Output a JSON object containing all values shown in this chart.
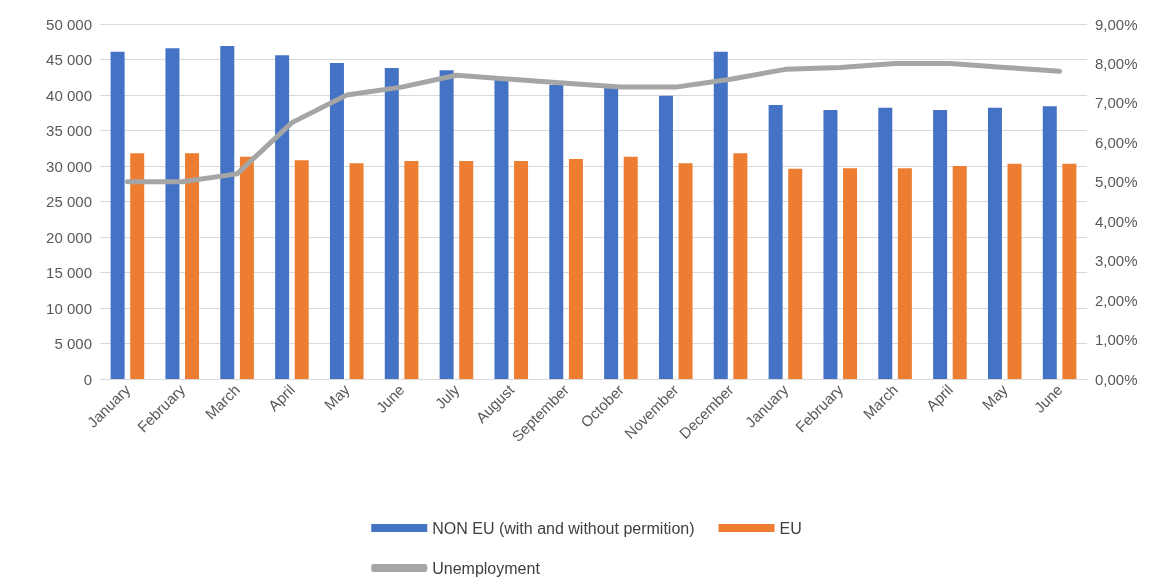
{
  "chart_data": {
    "type": "bar",
    "categories": [
      "January",
      "February",
      "March",
      "April",
      "May",
      "June",
      "July",
      "August",
      "September",
      "October",
      "November",
      "December",
      "January",
      "February",
      "March",
      "April",
      "May",
      "June"
    ],
    "series": [
      {
        "name": "NON EU (with and without permition)",
        "color": "#4472c4",
        "values": [
          46100,
          46600,
          46900,
          45600,
          44500,
          43800,
          43500,
          42500,
          41400,
          41000,
          39900,
          46100,
          38600,
          37900,
          38200,
          37900,
          38200,
          38400
        ]
      },
      {
        "name": "EU",
        "color": "#ed7d31",
        "values": [
          31800,
          31800,
          31300,
          30800,
          30400,
          30700,
          30700,
          30700,
          31000,
          31300,
          30400,
          31800,
          29600,
          29700,
          29700,
          30000,
          30300,
          30300
        ]
      },
      {
        "name": "Unemployment",
        "color": "#a5a5a5",
        "type": "line",
        "axis": "y2",
        "values": [
          5.0,
          5.0,
          5.2,
          6.5,
          7.2,
          7.4,
          7.7,
          7.6,
          7.5,
          7.4,
          7.4,
          7.6,
          7.85,
          7.9,
          8.0,
          8.0,
          7.9,
          7.8
        ]
      }
    ],
    "ylim": [
      0,
      50000
    ],
    "yticks": [
      0,
      {
        "value": 5000,
        "label": "5 000"
      },
      {
        "value": 10000,
        "label": "10 000"
      },
      {
        "value": 15000,
        "label": "15 000"
      },
      {
        "value": 20000,
        "label": "20 000"
      },
      {
        "value": 25000,
        "label": "25 000"
      },
      {
        "value": 30000,
        "label": "30 000"
      },
      {
        "value": 35000,
        "label": "35 000"
      },
      {
        "value": 40000,
        "label": "40 000"
      },
      {
        "value": 45000,
        "label": "45 000"
      },
      {
        "value": 50000,
        "label": "50 000"
      }
    ],
    "y2lim": [
      0,
      9
    ],
    "y2ticks": [
      {
        "value": 0,
        "label": "0,00%"
      },
      {
        "value": 1,
        "label": "1,00%"
      },
      {
        "value": 2,
        "label": "2,00%"
      },
      {
        "value": 3,
        "label": "3,00%"
      },
      {
        "value": 4,
        "label": "4,00%"
      },
      {
        "value": 5,
        "label": "5,00%"
      },
      {
        "value": 6,
        "label": "6,00%"
      },
      {
        "value": 7,
        "label": "7,00%"
      },
      {
        "value": 8,
        "label": "8,00%"
      },
      {
        "value": 9,
        "label": "9,00%"
      }
    ],
    "grid": "y",
    "legend": "bottom",
    "marker": "none",
    "line_style": "solid"
  }
}
